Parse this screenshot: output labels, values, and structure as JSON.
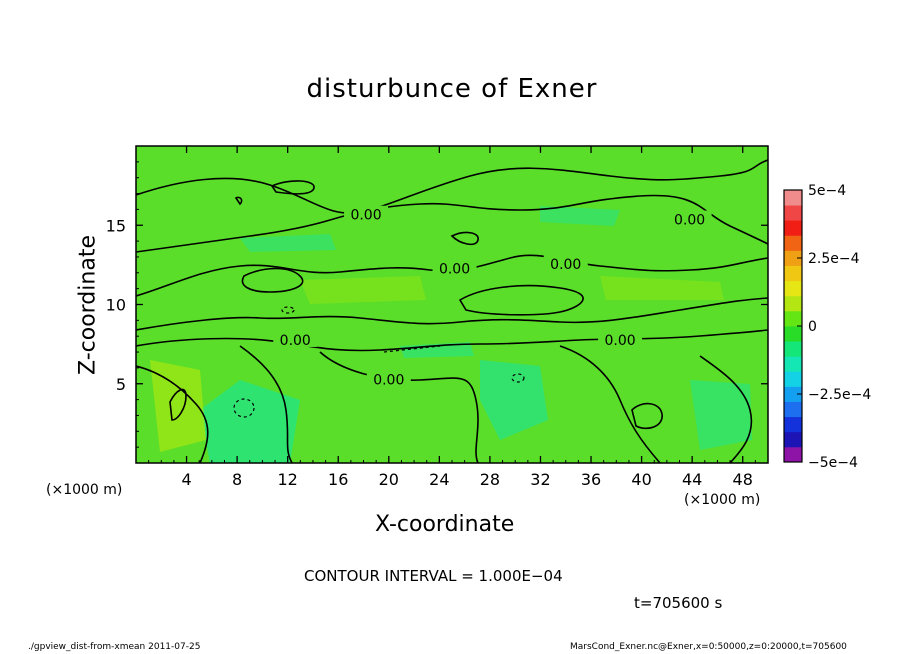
{
  "chart_data": {
    "type": "heatmap",
    "title": "disturbunce of Exner",
    "xlabel": "X-coordinate",
    "ylabel": "Z-coordinate",
    "x_unit": "(×1000 m)",
    "z_unit": "(×1000 m)",
    "xlim": [
      0,
      50
    ],
    "ylim": [
      0,
      20
    ],
    "x_ticks": [
      4,
      8,
      12,
      16,
      20,
      24,
      28,
      32,
      36,
      40,
      44,
      48
    ],
    "y_ticks": [
      5,
      10,
      15
    ],
    "colorbar": {
      "range": [
        -0.0005,
        0.0005
      ],
      "tick_labels": [
        "5e−4",
        "2.5e−4",
        "0",
        "−2.5e−4",
        "−5e−4"
      ],
      "tick_values": [
        0.0005,
        0.00025,
        0,
        -0.00025,
        -0.0005
      ],
      "colors": [
        "#8e14a8",
        "#1c14b4",
        "#1432dc",
        "#1e6ef0",
        "#14a0f0",
        "#14d2e6",
        "#14e6b4",
        "#14e678",
        "#28dc28",
        "#64e614",
        "#b4e614",
        "#e6e614",
        "#f0c814",
        "#f0a014",
        "#f06414",
        "#f01e14",
        "#f04646",
        "#f08c8c"
      ]
    },
    "contour_labels": [
      {
        "x": 18.2,
        "z": 15.6,
        "text": "0.00"
      },
      {
        "x": 25.2,
        "z": 12.2,
        "text": "0.00"
      },
      {
        "x": 34.0,
        "z": 12.5,
        "text": "0.00"
      },
      {
        "x": 43.8,
        "z": 15.3,
        "text": "0.00"
      },
      {
        "x": 12.6,
        "z": 7.7,
        "text": "0.00"
      },
      {
        "x": 38.3,
        "z": 7.7,
        "text": "0.00"
      },
      {
        "x": 20.0,
        "z": 5.2,
        "text": "0.00"
      }
    ],
    "contour_interval_text": "CONTOUR INTERVAL = 1.000E−04",
    "time_text": "t=705600 s"
  },
  "footer": {
    "left": "./gpview_dist-from-xmean  2011-07-25",
    "right": "MarsCond_Exner.nc@Exner,x=0:50000,z=0:20000,t=705600"
  }
}
